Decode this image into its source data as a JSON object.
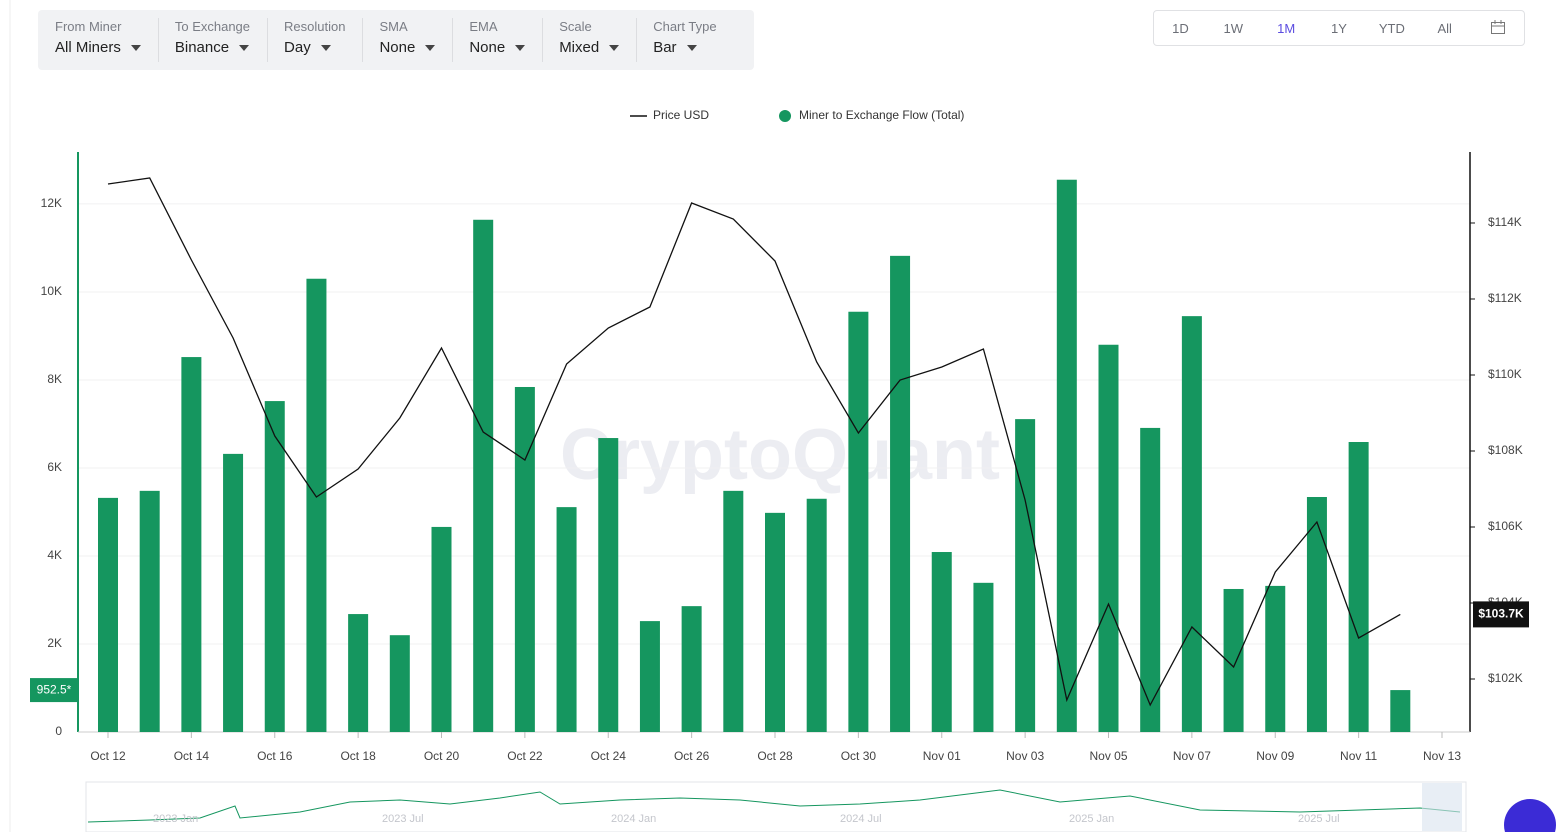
{
  "toolbar": {
    "filters": [
      {
        "label": "From Miner",
        "value": "All Miners"
      },
      {
        "label": "To Exchange",
        "value": "Binance"
      },
      {
        "label": "Resolution",
        "value": "Day"
      },
      {
        "label": "SMA",
        "value": "None"
      },
      {
        "label": "EMA",
        "value": "None"
      },
      {
        "label": "Scale",
        "value": "Mixed"
      },
      {
        "label": "Chart Type",
        "value": "Bar"
      }
    ],
    "ranges": [
      "1D",
      "1W",
      "1M",
      "1Y",
      "YTD",
      "All"
    ],
    "active_range": 2
  },
  "chart_data": {
    "type": "combo",
    "watermark": "CryptoQuant",
    "categories": [
      "Oct 12",
      null,
      "Oct 14",
      null,
      "Oct 16",
      null,
      "Oct 18",
      null,
      "Oct 20",
      null,
      "Oct 22",
      null,
      "Oct 24",
      null,
      "Oct 26",
      null,
      "Oct 28",
      null,
      "Oct 30",
      null,
      "Nov 01",
      null,
      "Nov 03",
      null,
      "Nov 05",
      null,
      "Nov 07",
      null,
      "Nov 09",
      null,
      "Nov 11",
      null,
      "Nov 13"
    ],
    "series": [
      {
        "name": "Miner to Exchange Flow (Total)",
        "type": "bar",
        "color": "#15965f",
        "values": [
          5320,
          5480,
          8520,
          6320,
          7520,
          10300,
          2680,
          2200,
          4660,
          11640,
          7840,
          5110,
          6680,
          2520,
          2860,
          5480,
          4980,
          5300,
          9550,
          10820,
          4090,
          3390,
          7110,
          12550,
          8800,
          6910,
          9450,
          3250,
          3320,
          5340,
          6590,
          952.5,
          null
        ],
        "last_label": "952.5*"
      },
      {
        "name": "Price USD",
        "type": "line",
        "color": "#111111",
        "axis": "y2",
        "values": [
          115026,
          115184,
          113026,
          110974,
          108395,
          106789,
          107526,
          108868,
          110711,
          108500,
          107763,
          110289,
          111237,
          111789,
          114526,
          114105,
          113000,
          110342,
          108474,
          109868,
          110211,
          110684,
          106711,
          101447,
          103974,
          101316,
          103368,
          102316,
          104816,
          106132,
          103079,
          103700,
          null
        ],
        "last_label": "$103.7K"
      }
    ],
    "ylim": [
      0,
      13180
    ],
    "yticks": [
      0,
      {
        "value": 2000,
        "label": "2K"
      },
      {
        "value": 4000,
        "label": "4K"
      },
      {
        "value": 6000,
        "label": "6K"
      },
      {
        "value": 8000,
        "label": "8K"
      },
      {
        "value": 10000,
        "label": "10K"
      },
      {
        "value": 12000,
        "label": "12K"
      }
    ],
    "y2lim": [
      100605,
      115868
    ],
    "y2ticks": [
      {
        "value": 102000,
        "label": "$102K"
      },
      {
        "value": 104000,
        "label": "$104K"
      },
      {
        "value": 106000,
        "label": "$106K"
      },
      {
        "value": 108000,
        "label": "$108K"
      },
      {
        "value": 110000,
        "label": "$110K"
      },
      {
        "value": 112000,
        "label": "$112K"
      },
      {
        "value": 114000,
        "label": "$114K"
      }
    ],
    "grid": true,
    "navigator_labels": [
      "2023 Jan",
      "2023 Jul",
      "2024 Jan",
      "2024 Jul",
      "2025 Jan",
      "2025 Jul"
    ]
  }
}
